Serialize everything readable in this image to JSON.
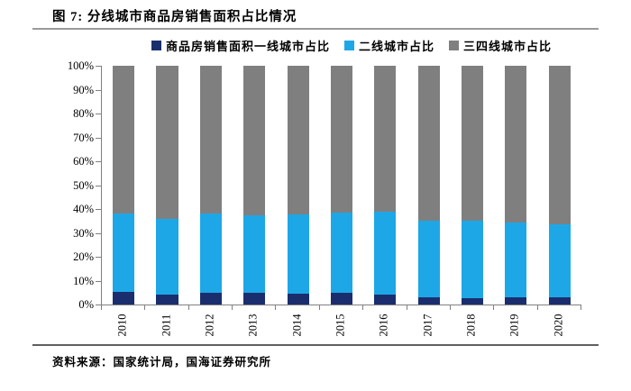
{
  "header": {
    "title": "图 7: 分线城市商品房销售面积占比情况"
  },
  "footer": {
    "source": "资料来源：国家统计局，国海证券研究所"
  },
  "colors": {
    "tier1": "#1A2E6E",
    "tier2": "#1EA7E6",
    "tier34": "#7F7F7F",
    "axis": "#808080",
    "title_rule": "#9A9A9A",
    "footer_rule": "#5F5F5F"
  },
  "chart_data": {
    "type": "bar",
    "stacked": true,
    "title": "分线城市商品房销售面积占比情况",
    "categories": [
      "2010",
      "2011",
      "2012",
      "2013",
      "2014",
      "2015",
      "2016",
      "2017",
      "2018",
      "2019",
      "2020"
    ],
    "series": [
      {
        "key": "tier1",
        "name": "商品房销售面积一线城市占比",
        "color": "#1A2E6E",
        "values": [
          5.3,
          4.2,
          5.0,
          4.8,
          4.5,
          4.8,
          4.3,
          3.0,
          2.6,
          2.9,
          2.9
        ]
      },
      {
        "key": "tier2",
        "name": "二线城市占比",
        "color": "#1EA7E6",
        "values": [
          32.7,
          31.8,
          33.0,
          32.5,
          33.1,
          33.6,
          34.7,
          32.2,
          32.4,
          31.5,
          30.8
        ]
      },
      {
        "key": "tier34",
        "name": "三四线城市占比",
        "color": "#7F7F7F",
        "values": [
          62.0,
          64.0,
          62.0,
          62.7,
          62.4,
          61.6,
          61.0,
          64.8,
          65.0,
          65.6,
          66.3
        ]
      }
    ],
    "xlabel": "",
    "ylabel": "",
    "ylim": [
      0,
      100
    ],
    "yticks": [
      "0%",
      "10%",
      "20%",
      "30%",
      "40%",
      "50%",
      "60%",
      "70%",
      "80%",
      "90%",
      "100%"
    ],
    "grid": false,
    "legend_position": "top",
    "x_label_rotation": -90
  }
}
